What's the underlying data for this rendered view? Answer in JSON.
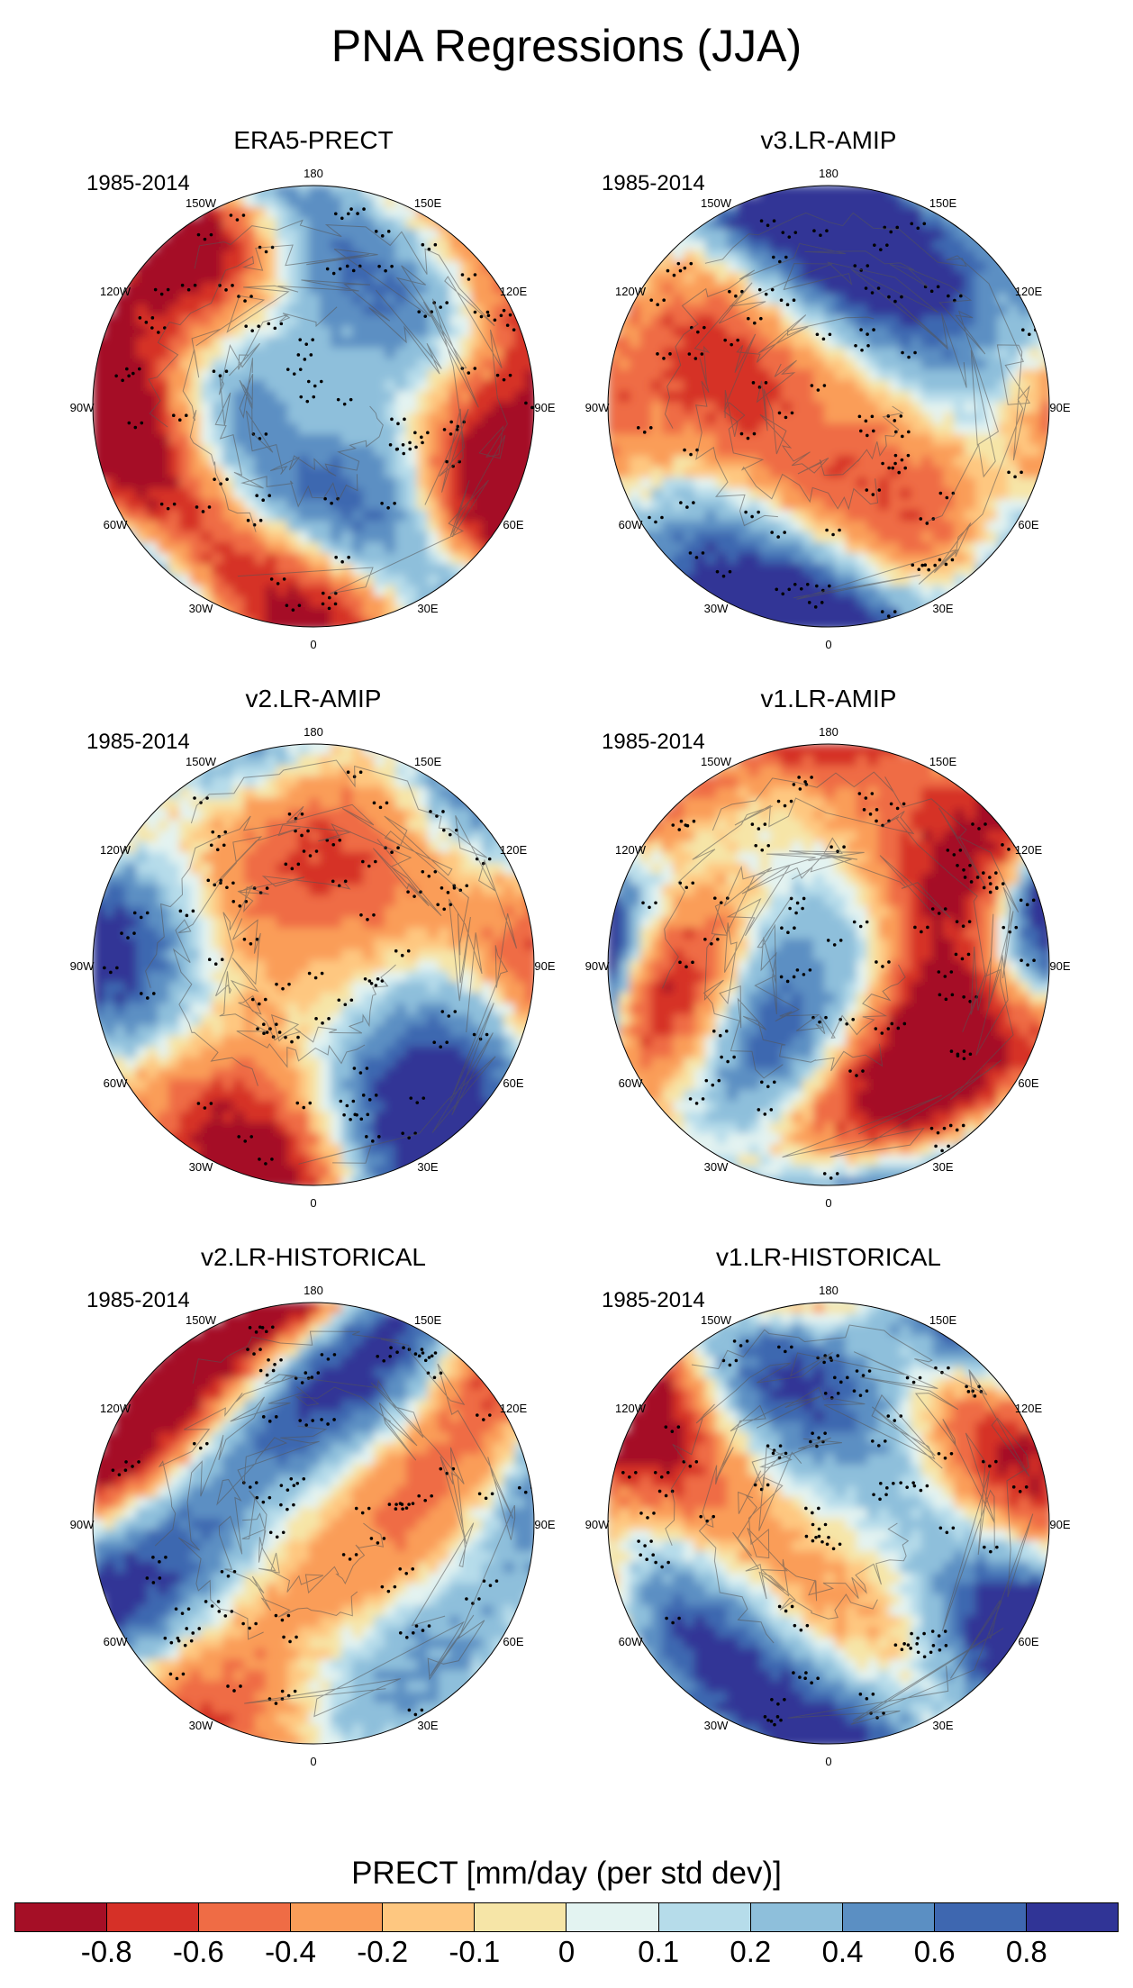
{
  "title": "PNA Regressions (JJA)",
  "panels": [
    {
      "title": "ERA5-PRECT",
      "period": "1985-2014",
      "bias": 0.25,
      "seed": 11
    },
    {
      "title": "v3.LR-AMIP",
      "period": "1985-2014",
      "bias": 0.05,
      "seed": 23
    },
    {
      "title": "v2.LR-AMIP",
      "period": "1985-2014",
      "bias": 0.0,
      "seed": 37
    },
    {
      "title": "v1.LR-AMIP",
      "period": "1985-2014",
      "bias": 0.1,
      "seed": 41
    },
    {
      "title": "v2.LR-HISTORICAL",
      "period": "1985-2014",
      "bias": -0.05,
      "seed": 53
    },
    {
      "title": "v1.LR-HISTORICAL",
      "period": "1985-2014",
      "bias": 0.0,
      "seed": 67
    }
  ],
  "longitude_labels": {
    "top": "180",
    "bottom": "0",
    "upper_left": "150W",
    "upper_right": "150E",
    "left_high": "120W",
    "right_high": "120E",
    "left": "90W",
    "right": "90E",
    "left_low": "60W",
    "right_low": "60E",
    "lower_left": "30W",
    "lower_right": "30E"
  },
  "colorbar": {
    "title": "PRECT [mm/day (per std dev)]",
    "colors": [
      "#a50f26",
      "#d63027",
      "#ef6c45",
      "#fa9d59",
      "#fec780",
      "#f6e5a7",
      "#e3f3f1",
      "#b6dcea",
      "#8ebfdb",
      "#5b8fc3",
      "#3e67b0",
      "#303496"
    ],
    "labels": [
      "-0.8",
      "-0.6",
      "-0.4",
      "-0.2",
      "-0.1",
      "0",
      "0.1",
      "0.2",
      "0.4",
      "0.6",
      "0.8"
    ]
  }
}
